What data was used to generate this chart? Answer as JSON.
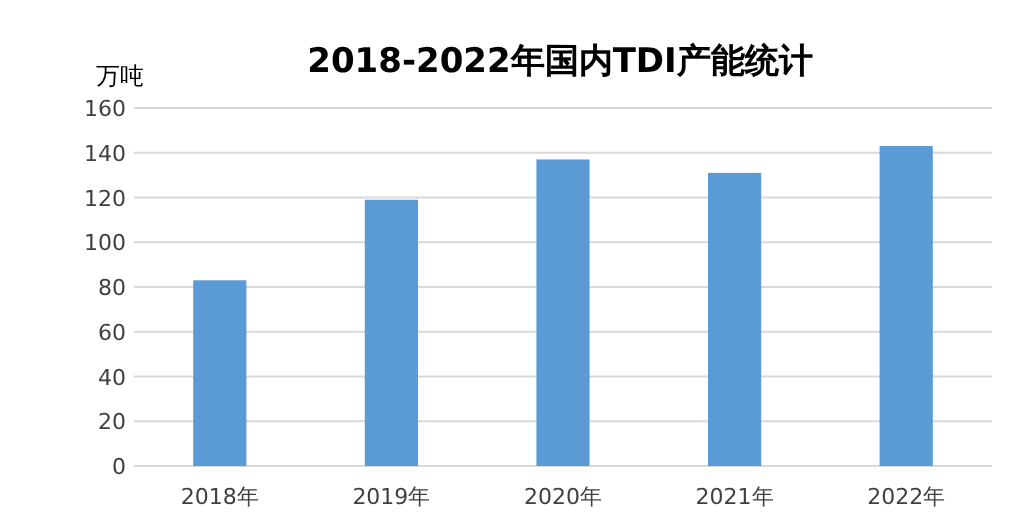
{
  "chart_data": {
    "type": "bar",
    "title": "2018-2022年国内TDI产能统计",
    "ylabel": "万吨",
    "categories": [
      "2018年",
      "2019年",
      "2020年",
      "2021年",
      "2022年"
    ],
    "values": [
      83,
      119,
      137,
      131,
      143
    ],
    "color": "#5b9bd5",
    "ylim": [
      0,
      160
    ],
    "yticks": [
      0,
      20,
      40,
      60,
      80,
      100,
      120,
      140,
      160
    ],
    "grid": "y"
  }
}
